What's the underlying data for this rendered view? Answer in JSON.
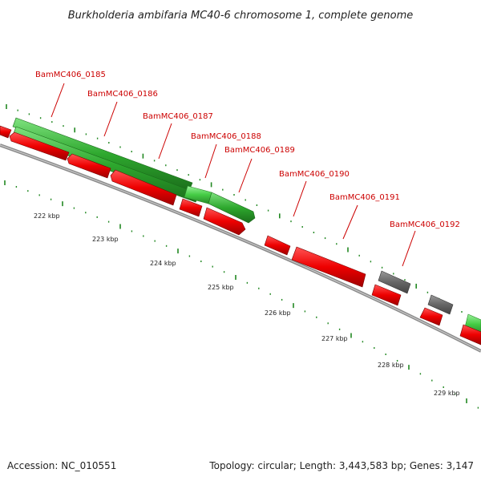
{
  "title": "Burkholderia ambifaria MC40-6 chromosome 1, complete genome",
  "footer": {
    "accession": "Accession: NC_010551",
    "summary": "Topology: circular; Length: 3,443,583 bp; Genes: 3,147"
  },
  "gene_labels": [
    "BamMC406_0185",
    "BamMC406_0186",
    "BamMC406_0187",
    "BamMC406_0188",
    "BamMC406_0189",
    "BamMC406_0190",
    "BamMC406_0191",
    "BamMC406_0192"
  ],
  "kbp_ticks": [
    "222 kbp",
    "223 kbp",
    "224 kbp",
    "225 kbp",
    "226 kbp",
    "227 kbp",
    "228 kbp",
    "229 kbp"
  ],
  "colors": {
    "forward_strand_green": "#33bb33",
    "reverse_strand_red": "#ee0000",
    "other_gene_gray": "#666666",
    "label_red": "#cc0000",
    "backbone_gray": "#888888"
  }
}
